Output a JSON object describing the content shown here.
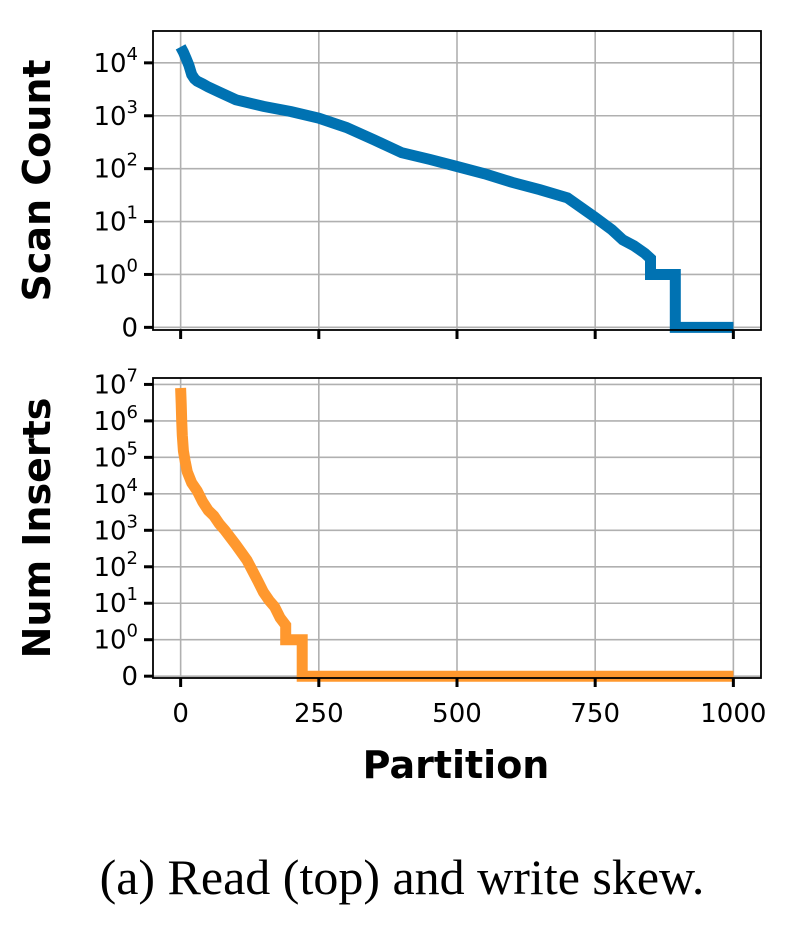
{
  "caption": "(a) Read (top) and write skew.",
  "chart_data": [
    {
      "type": "line",
      "ylabel": "Scan Count",
      "xlabel": "",
      "yscale": "symlog",
      "xlim": [
        -50,
        1050
      ],
      "ylim": [
        -0.05,
        40000
      ],
      "grid": true,
      "x_ticks": [
        0,
        250,
        500,
        750,
        1000
      ],
      "y_ticks": [
        {
          "value": 0,
          "base": "0",
          "exp": ""
        },
        {
          "value": 1,
          "base": "10",
          "exp": "0"
        },
        {
          "value": 10,
          "base": "10",
          "exp": "1"
        },
        {
          "value": 100,
          "base": "10",
          "exp": "2"
        },
        {
          "value": 1000,
          "base": "10",
          "exp": "3"
        },
        {
          "value": 10000,
          "base": "10",
          "exp": "4"
        }
      ],
      "color": "#0072b2",
      "series": [
        {
          "x": [
            0,
            5,
            10,
            15,
            20,
            25,
            30,
            40,
            50,
            70,
            100,
            150,
            200,
            250,
            300,
            350,
            400,
            450,
            500,
            550,
            600,
            650,
            700,
            750,
            780,
            800,
            820,
            840,
            850,
            850,
            860,
            868,
            868,
            895,
            895,
            1000
          ],
          "y": [
            20000,
            16000,
            12000,
            9000,
            6000,
            5000,
            4500,
            4000,
            3500,
            2800,
            2000,
            1500,
            1200,
            900,
            600,
            350,
            200,
            150,
            110,
            80,
            55,
            40,
            28,
            12,
            7,
            4.5,
            3.5,
            2.5,
            2,
            1,
            1,
            1,
            1,
            1,
            0,
            0
          ]
        }
      ]
    },
    {
      "type": "line",
      "ylabel": "Num Inserts",
      "xlabel": "Partition",
      "yscale": "symlog",
      "xlim": [
        -50,
        1050
      ],
      "ylim": [
        -0.05,
        15000000
      ],
      "grid": true,
      "x_ticks": [
        0,
        250,
        500,
        750,
        1000
      ],
      "y_ticks": [
        {
          "value": 0,
          "base": "0",
          "exp": ""
        },
        {
          "value": 1,
          "base": "10",
          "exp": "0"
        },
        {
          "value": 10,
          "base": "10",
          "exp": "1"
        },
        {
          "value": 100,
          "base": "10",
          "exp": "2"
        },
        {
          "value": 1000,
          "base": "10",
          "exp": "3"
        },
        {
          "value": 10000,
          "base": "10",
          "exp": "4"
        },
        {
          "value": 100000,
          "base": "10",
          "exp": "5"
        },
        {
          "value": 1000000,
          "base": "10",
          "exp": "6"
        },
        {
          "value": 10000000,
          "base": "10",
          "exp": "7"
        }
      ],
      "color": "#ff982e",
      "series": [
        {
          "x": [
            0,
            1,
            2,
            3,
            5,
            8,
            12,
            20,
            30,
            40,
            50,
            60,
            70,
            80,
            100,
            120,
            140,
            150,
            160,
            170,
            180,
            190,
            190,
            200,
            210,
            220,
            220,
            1000
          ],
          "y": [
            8000000,
            3000000,
            1000000,
            400000,
            150000,
            80000,
            40000,
            20000,
            12000,
            6000,
            3500,
            2500,
            1500,
            1000,
            400,
            150,
            40,
            20,
            12,
            8,
            4,
            2.5,
            1,
            1,
            1,
            1,
            0,
            0
          ]
        }
      ]
    }
  ]
}
